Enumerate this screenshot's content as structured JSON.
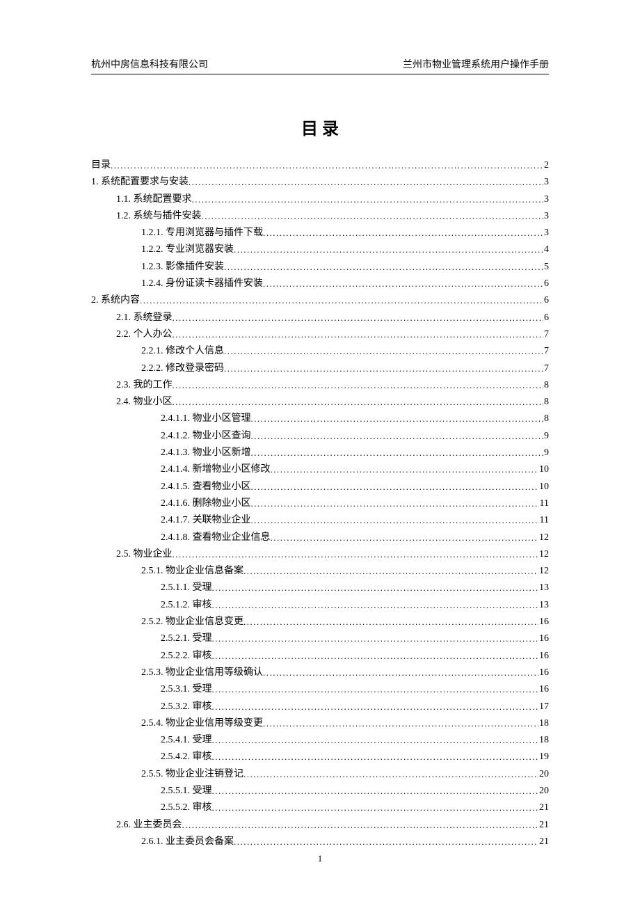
{
  "header": {
    "left": "杭州中房信息科技有限公司",
    "right": "兰州市物业管理系统用户操作手册"
  },
  "title": "目 录",
  "footer": "1",
  "toc": [
    {
      "indent": 0,
      "label": "目录",
      "page": "2"
    },
    {
      "indent": 0,
      "label": "1.  系统配置要求与安装",
      "page": "3"
    },
    {
      "indent": 1,
      "label": "1.1.  系统配置要求",
      "page": "3"
    },
    {
      "indent": 1,
      "label": "1.2.  系统与插件安装",
      "page": "3"
    },
    {
      "indent": 2,
      "label": "1.2.1.  专用浏览器与插件下载",
      "page": "3"
    },
    {
      "indent": 2,
      "label": "1.2.2.  专业浏览器安装",
      "page": "4"
    },
    {
      "indent": 2,
      "label": "1.2.3.  影像插件安装",
      "page": "5"
    },
    {
      "indent": 2,
      "label": "1.2.4.  身份证读卡器插件安装",
      "page": "6"
    },
    {
      "indent": 0,
      "label": "2.  系统内容",
      "page": "6"
    },
    {
      "indent": 1,
      "label": "2.1.  系统登录",
      "page": "6"
    },
    {
      "indent": 1,
      "label": "2.2.  个人办公",
      "page": "7"
    },
    {
      "indent": 2,
      "label": "2.2.1.  修改个人信息",
      "page": "7"
    },
    {
      "indent": 2,
      "label": "2.2.2.  修改登录密码",
      "page": "7"
    },
    {
      "indent": 1,
      "label": "2.3.  我的工作",
      "page": "8"
    },
    {
      "indent": 1,
      "label": "2.4.  物业小区",
      "page": "8"
    },
    {
      "indent": 3,
      "label": "2.4.1.1.  物业小区管理",
      "page": "8"
    },
    {
      "indent": 3,
      "label": "2.4.1.2.  物业小区查询",
      "page": "9"
    },
    {
      "indent": 3,
      "label": "2.4.1.3.  物业小区新增",
      "page": "9"
    },
    {
      "indent": 3,
      "label": "2.4.1.4.  新增物业小区修改",
      "page": "10"
    },
    {
      "indent": 3,
      "label": "2.4.1.5.  查看物业小区",
      "page": "10"
    },
    {
      "indent": 3,
      "label": "2.4.1.6.  删除物业小区",
      "page": "11"
    },
    {
      "indent": 3,
      "label": "2.4.1.7.  关联物业企业",
      "page": "11"
    },
    {
      "indent": 3,
      "label": "2.4.1.8.  查看物业企业信息",
      "page": "12"
    },
    {
      "indent": 1,
      "label": "2.5.  物业企业",
      "page": "12"
    },
    {
      "indent": 2,
      "label": "2.5.1.  物业企业信息备案",
      "page": "12"
    },
    {
      "indent": 3,
      "label": "2.5.1.1.  受理",
      "page": "13"
    },
    {
      "indent": 3,
      "label": "2.5.1.2.  审核",
      "page": "13"
    },
    {
      "indent": 2,
      "label": "2.5.2.  物业企业信息变更",
      "page": "16"
    },
    {
      "indent": 3,
      "label": "2.5.2.1.  受理",
      "page": "16"
    },
    {
      "indent": 3,
      "label": "2.5.2.2.  审核",
      "page": "16"
    },
    {
      "indent": 2,
      "label": "2.5.3.  物业企业信用等级确认",
      "page": "16"
    },
    {
      "indent": 3,
      "label": "2.5.3.1.  受理",
      "page": "16"
    },
    {
      "indent": 3,
      "label": "2.5.3.2.  审核",
      "page": "17"
    },
    {
      "indent": 2,
      "label": "2.5.4.  物业企业信用等级变更",
      "page": "18"
    },
    {
      "indent": 3,
      "label": "2.5.4.1.  受理",
      "page": "18"
    },
    {
      "indent": 3,
      "label": "2.5.4.2.  审核",
      "page": "19"
    },
    {
      "indent": 2,
      "label": "2.5.5.  物业企业注销登记",
      "page": "20"
    },
    {
      "indent": 3,
      "label": "2.5.5.1.  受理",
      "page": "20"
    },
    {
      "indent": 3,
      "label": "2.5.5.2.  审核",
      "page": "21"
    },
    {
      "indent": 1,
      "label": "2.6.  业主委员会",
      "page": "21"
    },
    {
      "indent": 2,
      "label": "2.6.1.  业主委员会备案",
      "page": "21"
    }
  ]
}
